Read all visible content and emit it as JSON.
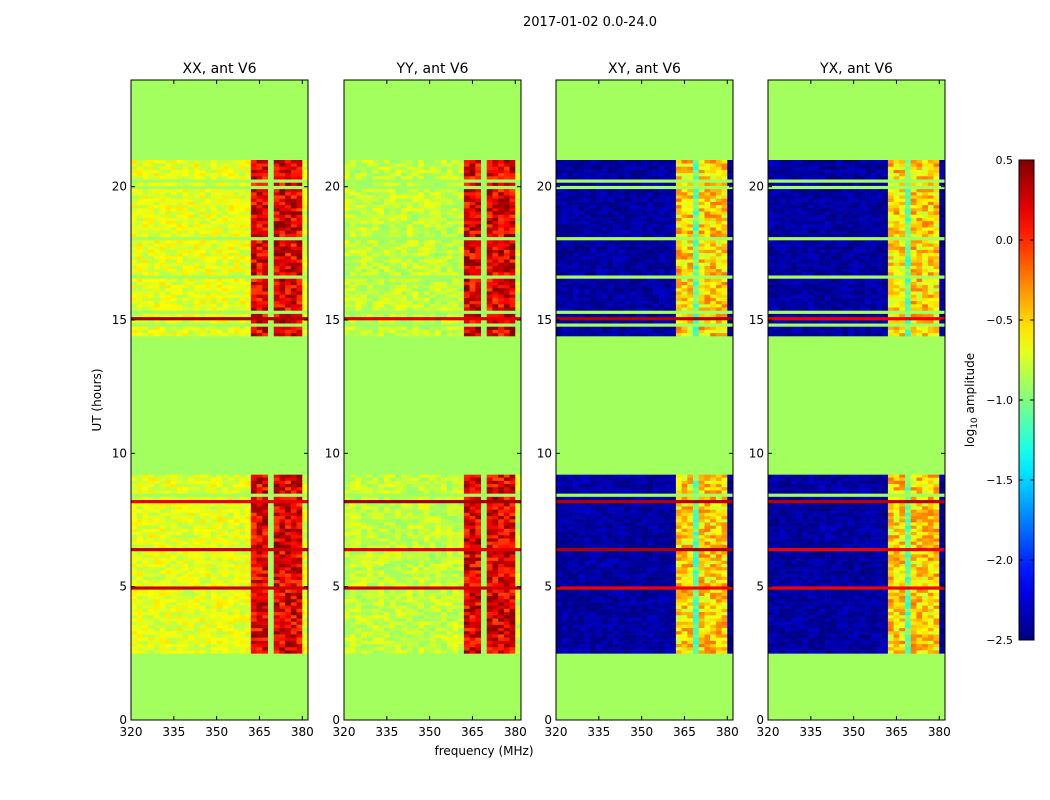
{
  "figure": {
    "suptitle": "2017-01-02 0.0-24.0"
  },
  "colors": {
    "background_level": "#7fff7f",
    "frame": "#000000"
  },
  "chart_data": {
    "type": "heatmap",
    "ylabel": "UT (hours)",
    "xlabel": "frequency (MHz)",
    "xlim": [
      320,
      382
    ],
    "ylim": [
      0,
      24
    ],
    "xticks": [
      "320",
      "335",
      "350",
      "365",
      "380"
    ],
    "xtick_values": [
      320,
      335,
      350,
      365,
      380
    ],
    "yticks": [
      "0",
      "5",
      "10",
      "15",
      "20"
    ],
    "ytick_values": [
      0,
      5,
      10,
      15,
      20
    ],
    "panels": [
      {
        "title": "XX, ant V6",
        "kind": "parallel",
        "approx_low_band_log10_amp": -0.7,
        "approx_high_band_log10_amp": 0.2
      },
      {
        "title": "YY, ant V6",
        "kind": "parallel",
        "approx_low_band_log10_amp": -0.8,
        "approx_high_band_log10_amp": 0.2
      },
      {
        "title": "XY, ant V6",
        "kind": "cross",
        "approx_low_band_log10_amp": -2.4,
        "approx_high_band_log10_amp": -0.5
      },
      {
        "title": "YX, ant V6",
        "kind": "cross",
        "approx_low_band_log10_amp": -2.4,
        "approx_high_band_log10_amp": -0.5
      }
    ],
    "observed_ut_ranges_hours": [
      [
        2.5,
        9.2
      ],
      [
        14.4,
        21.0
      ]
    ],
    "flagged_value_log10_amp": -0.9,
    "bright_band_mhz": [
      361,
      380
    ],
    "colorbar": {
      "label_main": "log",
      "label_sub": "10",
      "label_tail": " amplitude",
      "range": [
        -2.5,
        0.5
      ],
      "ticks": [
        "0.5",
        "0.0",
        "−0.5",
        "−1.0",
        "−1.5",
        "−2.0",
        "−2.5"
      ],
      "tick_values": [
        0.5,
        0.0,
        -0.5,
        -1.0,
        -1.5,
        -2.0,
        -2.5
      ],
      "colormap": "jet"
    }
  }
}
